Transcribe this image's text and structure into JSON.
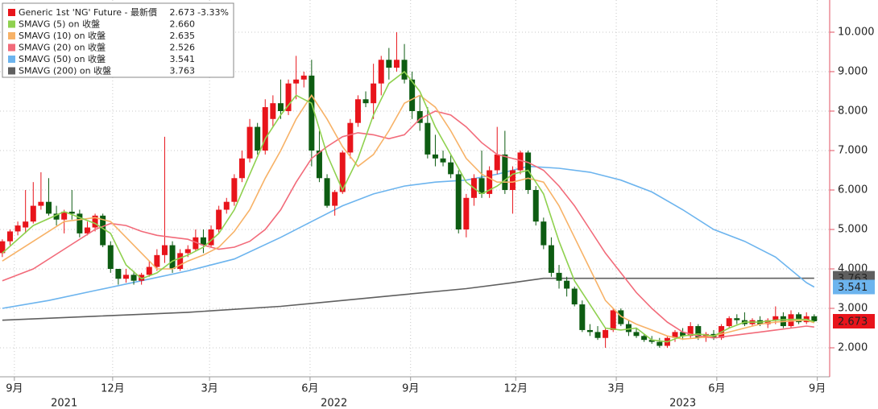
{
  "chart_data": {
    "type": "candlestick",
    "xlim": [
      -0.3,
      107
    ],
    "ylim": [
      1.265,
      10.816
    ],
    "yticks": [
      {
        "value": 2,
        "label": "2.000"
      },
      {
        "value": 3,
        "label": "3.000"
      },
      {
        "value": 4,
        "label": "4.000"
      },
      {
        "value": 5,
        "label": "5.000"
      },
      {
        "value": 6,
        "label": "6.000"
      },
      {
        "value": 7,
        "label": "7.000"
      },
      {
        "value": 8,
        "label": "8.000"
      },
      {
        "value": 9,
        "label": "9.000"
      },
      {
        "value": 10,
        "label": "10.000"
      }
    ],
    "xticks": [
      {
        "value": 1.56,
        "label": "9月"
      },
      {
        "value": 14.27,
        "label": "12月"
      },
      {
        "value": 26.8,
        "label": "3月"
      },
      {
        "value": 39.8,
        "label": "6月"
      },
      {
        "value": 52.8,
        "label": "9月"
      },
      {
        "value": 66.4,
        "label": "12月"
      },
      {
        "value": 79.4,
        "label": "3月"
      },
      {
        "value": 92.4,
        "label": "6月"
      },
      {
        "value": 105.4,
        "label": "9月"
      }
    ],
    "xyears": [
      {
        "value": 8,
        "label": "2021"
      },
      {
        "value": 42.9,
        "label": "2022"
      },
      {
        "value": 88,
        "label": "2023"
      }
    ],
    "grid": true,
    "candles": {
      "name": "Generic 1st 'NG' Future - 最新價",
      "last_label": "2.673",
      "change_label": "-3.33%",
      "up_color": "#e8141b",
      "down_color": "#0d5c12",
      "ohlc": [
        [
          4.4,
          4.75,
          4.3,
          4.7
        ],
        [
          4.7,
          5.0,
          4.6,
          4.95
        ],
        [
          4.95,
          5.2,
          4.85,
          5.1
        ],
        [
          5.05,
          6.0,
          4.9,
          5.2
        ],
        [
          5.2,
          6.2,
          5.15,
          5.6
        ],
        [
          5.6,
          6.45,
          5.5,
          5.7
        ],
        [
          5.7,
          6.3,
          5.35,
          5.4
        ],
        [
          5.4,
          5.6,
          5.1,
          5.25
        ],
        [
          5.25,
          5.5,
          4.9,
          5.45
        ],
        [
          5.45,
          6.0,
          5.25,
          5.4
        ],
        [
          5.4,
          5.5,
          4.8,
          4.9
        ],
        [
          4.9,
          5.2,
          4.85,
          5.05
        ],
        [
          5.05,
          5.4,
          4.95,
          5.35
        ],
        [
          5.35,
          5.4,
          4.55,
          4.6
        ],
        [
          4.6,
          4.7,
          3.9,
          4.0
        ],
        [
          4.0,
          4.0,
          3.6,
          3.75
        ],
        [
          3.75,
          4.0,
          3.65,
          3.85
        ],
        [
          3.85,
          3.95,
          3.6,
          3.7
        ],
        [
          3.7,
          3.9,
          3.6,
          3.85
        ],
        [
          3.85,
          4.2,
          3.8,
          4.05
        ],
        [
          4.05,
          4.5,
          3.95,
          4.35
        ],
        [
          4.35,
          7.35,
          4.15,
          4.6
        ],
        [
          4.6,
          4.7,
          3.9,
          4.0
        ],
        [
          4.0,
          4.5,
          3.95,
          4.4
        ],
        [
          4.4,
          4.6,
          4.3,
          4.5
        ],
        [
          4.5,
          5.0,
          4.45,
          4.8
        ],
        [
          4.8,
          5.0,
          4.4,
          4.6
        ],
        [
          4.6,
          5.1,
          4.55,
          5.0
        ],
        [
          5.0,
          5.6,
          4.9,
          5.5
        ],
        [
          5.5,
          5.8,
          5.4,
          5.7
        ],
        [
          5.7,
          6.4,
          5.6,
          6.3
        ],
        [
          6.3,
          7.0,
          6.2,
          6.8
        ],
        [
          6.8,
          7.8,
          6.7,
          7.6
        ],
        [
          7.6,
          7.7,
          6.9,
          7.0
        ],
        [
          7.0,
          8.3,
          6.9,
          8.1
        ],
        [
          7.8,
          8.4,
          7.6,
          8.2
        ],
        [
          8.2,
          8.8,
          7.8,
          8.0
        ],
        [
          8.0,
          8.8,
          7.9,
          8.7
        ],
        [
          8.7,
          9.4,
          8.3,
          8.8
        ],
        [
          8.8,
          9.0,
          8.6,
          8.9
        ],
        [
          8.9,
          9.3,
          6.6,
          7.0
        ],
        [
          7.0,
          7.5,
          6.2,
          6.3
        ],
        [
          6.3,
          6.4,
          5.55,
          5.6
        ],
        [
          5.6,
          6.0,
          5.35,
          5.95
        ],
        [
          5.95,
          7.0,
          5.9,
          6.95
        ],
        [
          6.95,
          7.8,
          6.8,
          7.7
        ],
        [
          7.7,
          8.4,
          7.6,
          8.3
        ],
        [
          8.3,
          8.5,
          8.1,
          8.2
        ],
        [
          8.2,
          9.2,
          7.8,
          8.7
        ],
        [
          8.7,
          9.4,
          8.4,
          9.3
        ],
        [
          9.3,
          9.6,
          8.8,
          9.1
        ],
        [
          9.1,
          10.0,
          9.0,
          9.3
        ],
        [
          9.3,
          9.7,
          8.7,
          8.8
        ],
        [
          8.8,
          9.0,
          7.8,
          8.0
        ],
        [
          8.0,
          8.4,
          7.5,
          7.7
        ],
        [
          7.7,
          8.1,
          6.8,
          6.9
        ],
        [
          6.9,
          7.4,
          6.6,
          6.8
        ],
        [
          6.8,
          7.0,
          6.6,
          6.7
        ],
        [
          6.7,
          6.9,
          6.3,
          6.4
        ],
        [
          6.4,
          6.5,
          4.9,
          5.0
        ],
        [
          5.0,
          5.9,
          4.8,
          5.8
        ],
        [
          5.8,
          6.4,
          5.6,
          6.3
        ],
        [
          6.3,
          7.0,
          5.8,
          5.9
        ],
        [
          5.9,
          6.6,
          5.8,
          6.5
        ],
        [
          6.5,
          7.6,
          6.4,
          6.9
        ],
        [
          6.9,
          7.5,
          5.9,
          6.0
        ],
        [
          6.0,
          6.6,
          5.4,
          6.5
        ],
        [
          6.5,
          7.0,
          6.4,
          6.95
        ],
        [
          6.95,
          7.0,
          5.9,
          6.0
        ],
        [
          6.0,
          6.1,
          5.1,
          5.2
        ],
        [
          5.2,
          5.3,
          4.5,
          4.6
        ],
        [
          4.6,
          4.8,
          3.8,
          3.9
        ],
        [
          3.9,
          4.1,
          3.5,
          3.7
        ],
        [
          3.7,
          3.8,
          3.3,
          3.5
        ],
        [
          3.5,
          3.55,
          3.05,
          3.1
        ],
        [
          3.1,
          3.2,
          2.4,
          2.45
        ],
        [
          2.45,
          2.6,
          2.3,
          2.4
        ],
        [
          2.4,
          2.55,
          2.2,
          2.25
        ],
        [
          2.25,
          2.5,
          2.0,
          2.45
        ],
        [
          2.45,
          3.0,
          2.4,
          2.95
        ],
        [
          2.95,
          3.0,
          2.55,
          2.6
        ],
        [
          2.6,
          2.7,
          2.3,
          2.4
        ],
        [
          2.4,
          2.5,
          2.25,
          2.3
        ],
        [
          2.3,
          2.35,
          2.15,
          2.2
        ],
        [
          2.2,
          2.3,
          2.1,
          2.15
        ],
        [
          2.15,
          2.25,
          2.0,
          2.05
        ],
        [
          2.05,
          2.3,
          2.0,
          2.25
        ],
        [
          2.25,
          2.45,
          2.15,
          2.4
        ],
        [
          2.4,
          2.5,
          2.2,
          2.3
        ],
        [
          2.3,
          2.65,
          2.25,
          2.55
        ],
        [
          2.55,
          2.6,
          2.2,
          2.25
        ],
        [
          2.25,
          2.4,
          2.15,
          2.35
        ],
        [
          2.35,
          2.45,
          2.2,
          2.25
        ],
        [
          2.25,
          2.6,
          2.2,
          2.55
        ],
        [
          2.55,
          2.8,
          2.5,
          2.75
        ],
        [
          2.75,
          2.85,
          2.6,
          2.7
        ],
        [
          2.7,
          2.9,
          2.55,
          2.6
        ],
        [
          2.6,
          2.75,
          2.55,
          2.7
        ],
        [
          2.7,
          2.8,
          2.55,
          2.6
        ],
        [
          2.6,
          2.75,
          2.5,
          2.7
        ],
        [
          2.7,
          3.05,
          2.6,
          2.8
        ],
        [
          2.8,
          2.9,
          2.5,
          2.55
        ],
        [
          2.55,
          2.95,
          2.5,
          2.85
        ],
        [
          2.85,
          2.9,
          2.6,
          2.65
        ],
        [
          2.65,
          2.9,
          2.6,
          2.8
        ],
        [
          2.8,
          2.85,
          2.65,
          2.673
        ]
      ]
    },
    "series": [
      {
        "name": "SMAVG (5)  on 收盤",
        "color": "#8fd14f",
        "last_label": "2.660",
        "x": [
          0,
          4,
          8,
          12,
          14,
          16,
          18,
          20,
          22,
          24,
          26,
          28,
          30,
          32,
          34,
          36,
          38,
          40,
          42,
          44,
          46,
          48,
          50,
          52,
          54,
          56,
          58,
          60,
          62,
          64,
          66,
          68,
          70,
          72,
          74,
          76,
          78,
          80,
          82,
          84,
          86,
          88,
          90,
          92,
          94,
          96,
          98,
          100,
          102,
          104,
          105
        ],
        "values": [
          4.4,
          5.1,
          5.45,
          5.15,
          4.9,
          4.1,
          3.75,
          3.9,
          4.2,
          4.35,
          4.55,
          4.9,
          5.5,
          6.4,
          7.3,
          7.9,
          8.4,
          8.2,
          6.9,
          6.0,
          6.8,
          7.9,
          8.7,
          9.0,
          8.5,
          7.6,
          6.9,
          6.2,
          5.9,
          6.1,
          6.4,
          6.5,
          5.9,
          4.7,
          3.7,
          3.1,
          2.5,
          2.45,
          2.5,
          2.2,
          2.15,
          2.3,
          2.35,
          2.3,
          2.5,
          2.65,
          2.65,
          2.7,
          2.72,
          2.72,
          2.66
        ]
      },
      {
        "name": "SMAVG (10)  on 收盤",
        "color": "#f7b267",
        "last_label": "2.635",
        "x": [
          0,
          4,
          8,
          12,
          14,
          16,
          18,
          20,
          22,
          24,
          26,
          28,
          30,
          32,
          34,
          36,
          38,
          40,
          42,
          44,
          46,
          48,
          50,
          52,
          54,
          56,
          58,
          60,
          62,
          64,
          66,
          68,
          70,
          72,
          74,
          76,
          78,
          80,
          82,
          84,
          86,
          88,
          90,
          92,
          94,
          96,
          98,
          100,
          102,
          104,
          105
        ],
        "values": [
          4.2,
          4.7,
          5.2,
          5.3,
          5.2,
          4.8,
          4.4,
          4.0,
          4.0,
          4.2,
          4.35,
          4.55,
          4.95,
          5.5,
          6.3,
          7.0,
          7.8,
          8.4,
          7.8,
          7.1,
          6.6,
          6.9,
          7.5,
          8.2,
          8.4,
          8.1,
          7.5,
          6.8,
          6.4,
          6.2,
          6.2,
          6.3,
          6.2,
          5.6,
          4.8,
          4.0,
          3.2,
          2.8,
          2.6,
          2.45,
          2.3,
          2.22,
          2.25,
          2.3,
          2.4,
          2.5,
          2.6,
          2.65,
          2.68,
          2.7,
          2.635
        ]
      },
      {
        "name": "SMAVG (20)  on 收盤",
        "color": "#f26b7a",
        "last_label": "2.526",
        "x": [
          0,
          4,
          8,
          12,
          14,
          16,
          18,
          20,
          22,
          24,
          26,
          28,
          30,
          32,
          34,
          36,
          38,
          40,
          42,
          44,
          46,
          48,
          50,
          52,
          54,
          56,
          58,
          60,
          62,
          64,
          66,
          68,
          70,
          72,
          74,
          76,
          78,
          80,
          82,
          84,
          86,
          88,
          90,
          92,
          94,
          96,
          98,
          100,
          102,
          104,
          105
        ],
        "values": [
          3.7,
          4.0,
          4.5,
          5.0,
          5.15,
          5.1,
          4.95,
          4.85,
          4.8,
          4.75,
          4.6,
          4.5,
          4.55,
          4.7,
          5.0,
          5.5,
          6.2,
          6.8,
          7.1,
          7.35,
          7.45,
          7.4,
          7.3,
          7.4,
          7.8,
          8.0,
          7.9,
          7.6,
          7.2,
          6.9,
          6.8,
          6.7,
          6.5,
          6.1,
          5.6,
          5.0,
          4.4,
          3.9,
          3.4,
          3.0,
          2.65,
          2.4,
          2.3,
          2.25,
          2.3,
          2.35,
          2.4,
          2.45,
          2.5,
          2.55,
          2.526
        ]
      },
      {
        "name": "SMAVG (50)  on 收盤",
        "color": "#6cb4ee",
        "last_label": "3.541",
        "x": [
          0,
          6,
          12,
          18,
          24,
          30,
          36,
          40,
          44,
          48,
          52,
          56,
          60,
          64,
          68,
          72,
          76,
          80,
          84,
          88,
          92,
          96,
          100,
          104,
          105
        ],
        "values": [
          3.0,
          3.2,
          3.45,
          3.7,
          3.95,
          4.25,
          4.8,
          5.2,
          5.6,
          5.9,
          6.1,
          6.2,
          6.25,
          6.4,
          6.6,
          6.55,
          6.45,
          6.25,
          5.95,
          5.5,
          5.0,
          4.7,
          4.3,
          3.65,
          3.541
        ]
      },
      {
        "name": "SMAVG (200)  on 收盤",
        "color": "#5f5f5f",
        "last_label": "3.763",
        "x": [
          0,
          12,
          24,
          36,
          44,
          52,
          60,
          66,
          70,
          80,
          90,
          105
        ],
        "values": [
          2.7,
          2.8,
          2.9,
          3.05,
          3.2,
          3.35,
          3.5,
          3.65,
          3.76,
          3.76,
          3.76,
          3.763
        ]
      }
    ]
  }
}
